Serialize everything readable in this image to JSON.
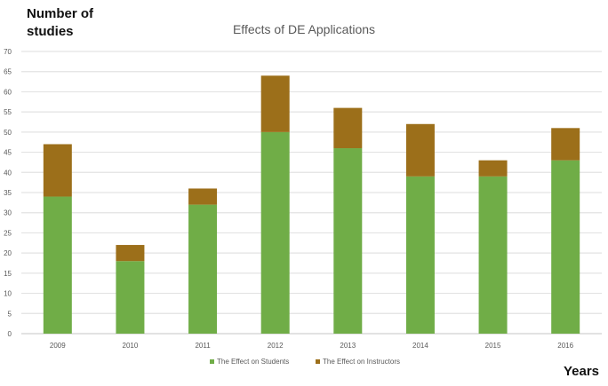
{
  "chart_data": {
    "type": "bar",
    "stacked": true,
    "title": "Effects of DE Applications",
    "ylabel": "Number of studies",
    "ylabel_lines": [
      "Number of",
      "studies"
    ],
    "xlabel": "Years",
    "categories": [
      "2009",
      "2010",
      "2011",
      "2012",
      "2013",
      "2014",
      "2015",
      "2016"
    ],
    "series": [
      {
        "name": "The Effect on Students",
        "color": "#70AD47",
        "values": [
          34,
          18,
          32,
          50,
          46,
          39,
          39,
          43
        ]
      },
      {
        "name": "The Effect on Instructors",
        "color": "#9C6F1A",
        "values": [
          13,
          4,
          4,
          14,
          10,
          13,
          4,
          8
        ]
      }
    ],
    "totals": [
      47,
      22,
      36,
      64,
      56,
      52,
      43,
      51
    ],
    "ylim": [
      0,
      70
    ],
    "yticks": [
      0,
      5,
      10,
      15,
      20,
      25,
      30,
      35,
      40,
      45,
      50,
      55,
      60,
      65,
      70
    ],
    "grid": true,
    "legend_position": "bottom-center"
  }
}
